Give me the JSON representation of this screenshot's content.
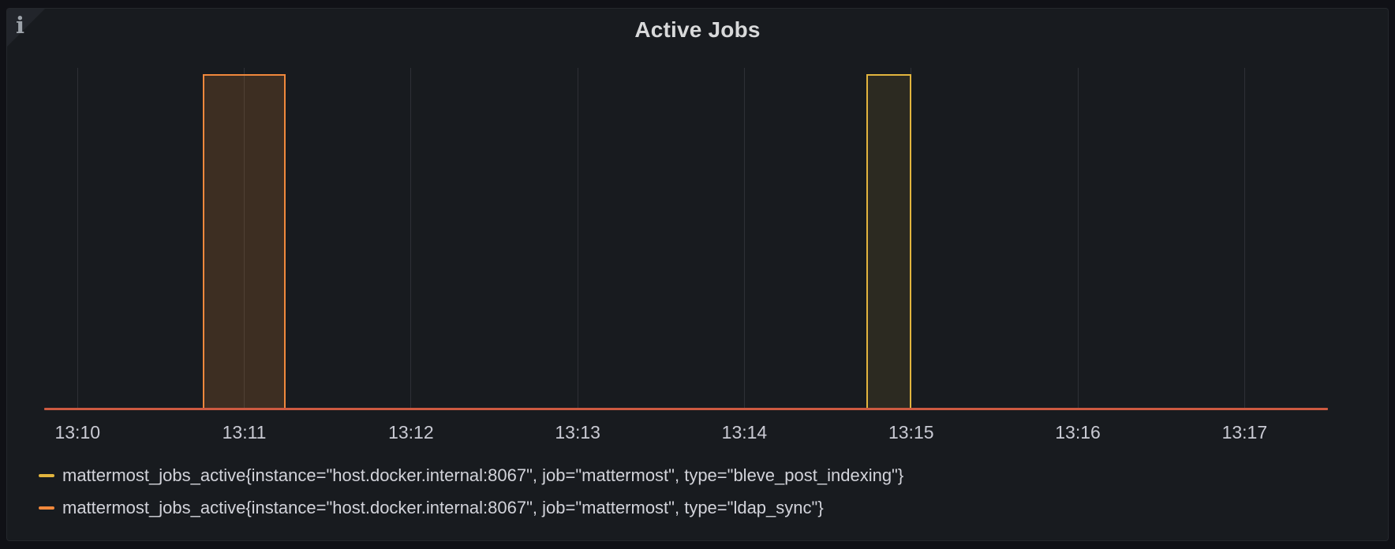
{
  "panel": {
    "title": "Active Jobs",
    "info_icon": "i"
  },
  "colors": {
    "outer_background": "#101116",
    "panel_background": "#181b1f",
    "corner": "#22252b",
    "title_text": "#d8d9da",
    "axis_text": "#c9cad3",
    "legend_text": "#d2d3da",
    "gridline": "rgba(204,204,220,0.12)",
    "zero_line": "#cd5a41",
    "yellow_stroke": "#e2b53e",
    "yellow_fill": "rgba(224,180,59,0.10)",
    "orange_stroke": "#f0883c",
    "orange_fill": "rgba(255,152,48,0.16)"
  },
  "chart_data": {
    "type": "bar",
    "title": "Active Jobs",
    "x_axis": {
      "start": "13:09:48",
      "end": "13:17:30",
      "ticks": [
        "13:10",
        "13:11",
        "13:12",
        "13:13",
        "13:14",
        "13:15",
        "13:16",
        "13:17"
      ]
    },
    "y_axis": {
      "min": 0,
      "max": 1.07,
      "labels_visible": false
    },
    "grid": "vertical-only",
    "legend_position": "bottom-left",
    "series": [
      {
        "name": "mattermost_jobs_active{instance=\"host.docker.internal:8067\", job=\"mattermost\", type=\"bleve_post_indexing\"}",
        "color_key": "yellow",
        "baseline_value": 0,
        "bars": [
          {
            "start": "13:14:44",
            "end": "13:15:00",
            "value": 1
          }
        ]
      },
      {
        "name": "mattermost_jobs_active{instance=\"host.docker.internal:8067\", job=\"mattermost\", type=\"ldap_sync\"}",
        "color_key": "orange",
        "baseline_value": 0,
        "bars": [
          {
            "start": "13:10:45",
            "end": "13:11:15",
            "value": 1
          }
        ]
      }
    ]
  }
}
